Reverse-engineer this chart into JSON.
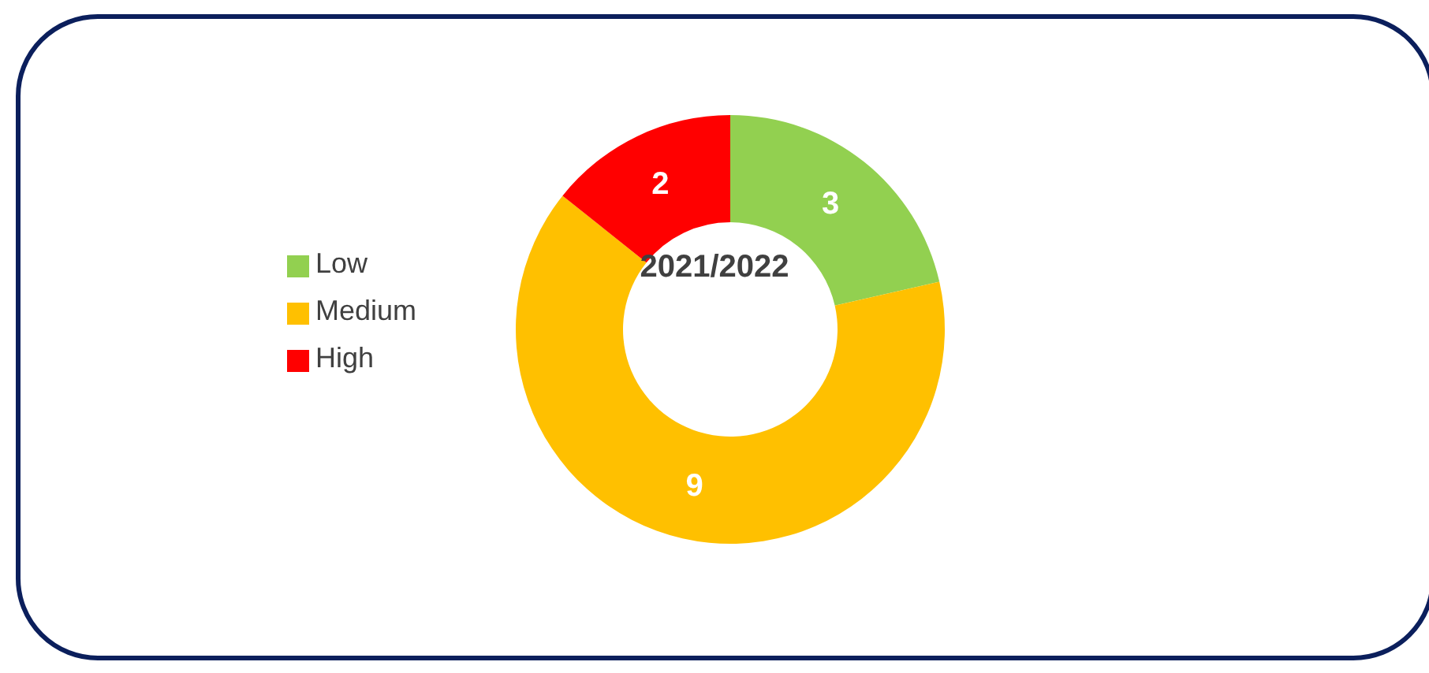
{
  "chart_data": {
    "type": "donut",
    "title": "2021/2022",
    "categories": [
      "Low",
      "Medium",
      "High"
    ],
    "values": [
      3,
      9,
      2
    ],
    "colors": [
      "#92d050",
      "#ffc000",
      "#ff0000"
    ],
    "legend": "left",
    "data_labels": true
  }
}
